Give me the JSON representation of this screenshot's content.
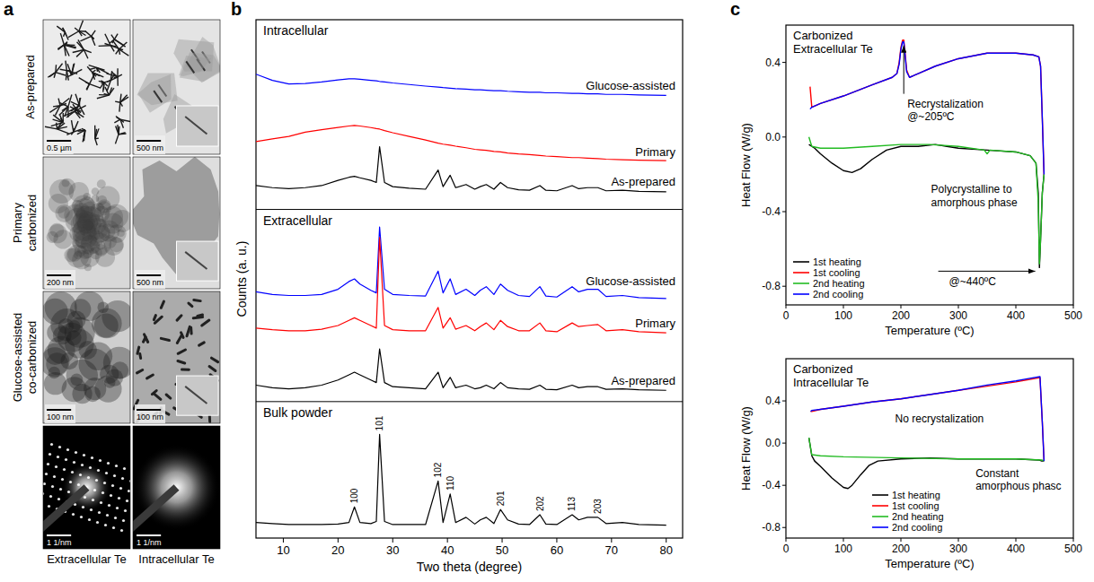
{
  "panel_a": {
    "panel_label": "a",
    "row_labels": [
      [
        "As-prepared"
      ],
      [
        "Primary",
        "carbonized"
      ],
      [
        "Glucose-assisted",
        "co-carbonized"
      ]
    ],
    "column_labels": [
      "Extracellular Te",
      "Intracellular Te"
    ],
    "scale_bars": [
      [
        "0.5 µm",
        "500 nm"
      ],
      [
        "200 nm",
        "500 nm"
      ],
      [
        "100 nm",
        "100 nm"
      ],
      [
        "1 1/nm",
        "1 1/nm"
      ]
    ]
  },
  "chart_data": [
    {
      "type": "line",
      "panel_label": "b",
      "x_label": "Two theta (degree)",
      "y_label": "Counts (a. u.)",
      "xlim": [
        5,
        83
      ],
      "xticks": [
        10,
        20,
        30,
        40,
        50,
        60,
        70,
        80
      ],
      "ylim": [
        0,
        100
      ],
      "tick_labels": "x",
      "x": [
        5,
        8,
        11,
        14,
        17,
        20,
        22,
        23,
        24,
        26,
        27,
        27.6,
        28.5,
        30,
        33,
        36,
        38.3,
        39.2,
        40.5,
        41.5,
        43.4,
        45,
        46,
        47.1,
        48.5,
        49.7,
        51,
        53,
        55,
        56.9,
        58,
        60,
        62.8,
        64,
        65.6,
        67.5,
        69,
        72,
        75,
        80
      ],
      "sections": [
        {
          "title": "Intracellular",
          "series": [
            {
              "name": "Glucose-assisted",
              "color": "#0000ff",
              "values": [
                89.5,
                88.3,
                87.6,
                87.7,
                88,
                88.4,
                88.6,
                88.6,
                88.5,
                88.3,
                88.2,
                88.1,
                88,
                87.8,
                87.5,
                87.2,
                87,
                86.9,
                86.8,
                86.7,
                86.6,
                86.5,
                86.5,
                86.4,
                86.3,
                86.3,
                86.2,
                86.1,
                86,
                86,
                85.9,
                85.9,
                85.8,
                85.8,
                85.7,
                85.7,
                85.6,
                85.6,
                85.5,
                85.4
              ]
            },
            {
              "name": "Primary",
              "color": "#ff0000",
              "values": [
                76.5,
                77,
                77.5,
                78.3,
                78.8,
                79.2,
                79.5,
                79.6,
                79.5,
                79.2,
                79,
                78.9,
                78.6,
                78.2,
                77.5,
                76.8,
                76.2,
                76,
                75.8,
                75.6,
                75.3,
                75,
                74.9,
                74.8,
                74.6,
                74.5,
                74.3,
                74.1,
                74,
                73.8,
                73.7,
                73.6,
                73.4,
                73.4,
                73.3,
                73.2,
                73.1,
                73,
                72.9,
                72.8
              ]
            },
            {
              "name": "As-prepared",
              "color": "#000000",
              "values": [
                68,
                67.6,
                67.4,
                67.6,
                68,
                69,
                69.6,
                69.8,
                69.5,
                69,
                68.6,
                75.5,
                68.6,
                67.8,
                67.5,
                67.3,
                71,
                67.8,
                70,
                67.6,
                68.2,
                67.3,
                67.8,
                68.2,
                67.3,
                68.6,
                67.6,
                67.2,
                67.1,
                68,
                67.1,
                67,
                68,
                67.4,
                67.6,
                67.6,
                67,
                67.1,
                66.9,
                66.8
              ]
            }
          ]
        },
        {
          "title": "Extracellular",
          "series": [
            {
              "name": "Glucose-assisted",
              "color": "#0000ff",
              "values": [
                47.5,
                47,
                46.8,
                46.8,
                47,
                48,
                49.5,
                50,
                49,
                47.8,
                47.3,
                60,
                48,
                47,
                46.8,
                46.7,
                51.5,
                47.3,
                50,
                47,
                48,
                46.8,
                47.8,
                48.5,
                47,
                49,
                47.8,
                46.8,
                46.6,
                48.5,
                46.7,
                46.5,
                48.5,
                47.5,
                48,
                48,
                46.6,
                46.8,
                46.4,
                46.2
              ]
            },
            {
              "name": "Primary",
              "color": "#ff0000",
              "values": [
                40.5,
                40.2,
                40,
                40,
                40.3,
                41,
                42,
                42.5,
                42,
                41,
                40.5,
                58,
                41,
                40.2,
                40,
                40,
                44.5,
                40.5,
                42.5,
                40.3,
                41,
                40,
                40.8,
                41.5,
                40.2,
                42,
                40.8,
                40,
                40,
                41.5,
                40,
                39.8,
                41.5,
                40.8,
                41,
                41.2,
                40,
                40.2,
                39.8,
                39.6
              ]
            },
            {
              "name": "As-prepared",
              "color": "#000000",
              "values": [
                29.5,
                29,
                28.8,
                29,
                29.5,
                30.5,
                31.5,
                32,
                31.5,
                30.5,
                30,
                36.5,
                30,
                29.2,
                29,
                28.8,
                32,
                29,
                31,
                29,
                29.5,
                28.8,
                29,
                29.5,
                28.8,
                30,
                29,
                28.8,
                28.7,
                29.5,
                28.7,
                28.6,
                29.5,
                29,
                29.2,
                29.2,
                28.7,
                28.8,
                28.6,
                28.5
              ]
            }
          ]
        },
        {
          "title": "Bulk powder",
          "series": [
            {
              "color": "#000000",
              "values": [
                3,
                2.8,
                2.6,
                2.6,
                2.6,
                2.7,
                3,
                6,
                3,
                2.8,
                3.2,
                20,
                3.2,
                2.6,
                2.6,
                2.6,
                11,
                3,
                8.5,
                3,
                4,
                2.7,
                3.5,
                4,
                2.8,
                5.5,
                3.5,
                2.7,
                2.6,
                4.5,
                2.7,
                2.6,
                4.5,
                3.5,
                4,
                4,
                2.8,
                3,
                2.6,
                2.5
              ]
            }
          ],
          "annotations": [
            {
              "text": "100",
              "x": 23
            },
            {
              "text": "101",
              "x": 27.6
            },
            {
              "text": "102",
              "x": 38.3
            },
            {
              "text": "110",
              "x": 40.5
            },
            {
              "text": "201",
              "x": 49.7
            },
            {
              "text": "202",
              "x": 56.9
            },
            {
              "text": "113",
              "x": 62.8
            },
            {
              "text": "203",
              "x": 67.5
            }
          ]
        }
      ]
    },
    {
      "type": "line",
      "panel_label": "c",
      "title": [
        "Carbonized",
        "Extracellular Te"
      ],
      "x_label": "Temperature (ºC)",
      "y_label": "Heat Flow (W/g)",
      "xlim": [
        0,
        500
      ],
      "xticks": [
        0,
        100,
        200,
        300,
        400,
        500
      ],
      "ylim": [
        -0.9,
        0.6
      ],
      "yticks": [
        -0.8,
        -0.4,
        {
          "value": 0,
          "label": "0.0"
        },
        0.4
      ],
      "legend": "lower left",
      "series": [
        {
          "name": "1st heating",
          "color": "#000000",
          "x": [
            40,
            50,
            60,
            80,
            100,
            115,
            130,
            150,
            175,
            200,
            230,
            260,
            280,
            300,
            350,
            400,
            425,
            435,
            439,
            441,
            443,
            446,
            449
          ],
          "values": [
            -0.04,
            -0.06,
            -0.09,
            -0.14,
            -0.18,
            -0.19,
            -0.17,
            -0.12,
            -0.07,
            -0.05,
            -0.05,
            -0.04,
            -0.05,
            -0.06,
            -0.07,
            -0.08,
            -0.1,
            -0.14,
            -0.3,
            -0.7,
            -0.55,
            -0.3,
            -0.2
          ]
        },
        {
          "name": "1st cooling",
          "color": "#ff0000",
          "x": [
            449,
            446,
            443,
            440,
            430,
            400,
            350,
            300,
            260,
            230,
            215,
            210,
            207,
            205,
            203,
            200,
            197,
            193,
            185,
            150,
            100,
            60,
            45,
            42
          ],
          "values": [
            -0.2,
            0.1,
            0.38,
            0.43,
            0.44,
            0.45,
            0.45,
            0.42,
            0.38,
            0.34,
            0.32,
            0.36,
            0.46,
            0.52,
            0.52,
            0.48,
            0.4,
            0.34,
            0.32,
            0.28,
            0.22,
            0.18,
            0.16,
            0.27
          ]
        },
        {
          "name": "2nd heating",
          "color": "#22bb22",
          "x": [
            40,
            45,
            60,
            100,
            150,
            200,
            250,
            300,
            345,
            350,
            355,
            400,
            425,
            435,
            439,
            441,
            443,
            446,
            449
          ],
          "values": [
            0,
            -0.05,
            -0.06,
            -0.06,
            -0.05,
            -0.04,
            -0.04,
            -0.05,
            -0.07,
            -0.09,
            -0.07,
            -0.08,
            -0.1,
            -0.14,
            -0.35,
            -0.68,
            -0.55,
            -0.3,
            -0.2
          ]
        },
        {
          "name": "2nd cooling",
          "color": "#0000ff",
          "x": [
            449,
            446,
            443,
            440,
            430,
            400,
            350,
            300,
            260,
            230,
            215,
            210,
            207,
            205,
            203,
            200,
            197,
            193,
            185,
            150,
            100,
            60,
            45,
            42
          ],
          "values": [
            -0.2,
            0.1,
            0.38,
            0.43,
            0.44,
            0.45,
            0.45,
            0.42,
            0.38,
            0.34,
            0.32,
            0.35,
            0.45,
            0.51,
            0.51,
            0.47,
            0.39,
            0.34,
            0.32,
            0.28,
            0.22,
            0.18,
            0.16,
            0.15
          ]
        }
      ],
      "annotations": [
        {
          "lines": [
            "Recrystalization",
            "@~205ºC"
          ],
          "x": 205,
          "y": 0.52
        },
        {
          "lines": [
            "Polycrystalline to",
            "amorphous phase",
            "@~440ºC"
          ],
          "x": 440,
          "y": -0.7
        }
      ]
    },
    {
      "type": "line",
      "title": [
        "Carbonized",
        "Intracellular Te"
      ],
      "x_label": "Temperature (ºC)",
      "y_label": "Heat Flow (W/g)",
      "xlim": [
        0,
        500
      ],
      "xticks": [
        0,
        100,
        200,
        300,
        400,
        500
      ],
      "ylim": [
        -0.9,
        0.8
      ],
      "yticks": [
        -0.8,
        -0.4,
        {
          "value": 0,
          "label": "0.0"
        },
        0.4
      ],
      "legend": "lower center",
      "series": [
        {
          "name": "1st heating",
          "color": "#000000",
          "x": [
            40,
            45,
            50,
            60,
            80,
            100,
            108,
            115,
            130,
            145,
            160,
            200,
            250,
            300,
            350,
            400,
            440,
            445,
            449
          ],
          "values": [
            0.05,
            -0.12,
            -0.17,
            -0.22,
            -0.33,
            -0.42,
            -0.43,
            -0.4,
            -0.3,
            -0.21,
            -0.17,
            -0.15,
            -0.14,
            -0.15,
            -0.15,
            -0.15,
            -0.16,
            -0.17,
            -0.17
          ]
        },
        {
          "name": "1st cooling",
          "color": "#ff0000",
          "x": [
            449,
            446,
            442,
            420,
            400,
            350,
            300,
            250,
            200,
            150,
            100,
            60,
            45,
            43
          ],
          "values": [
            -0.17,
            0.2,
            0.62,
            0.6,
            0.58,
            0.54,
            0.5,
            0.46,
            0.42,
            0.39,
            0.35,
            0.32,
            0.3,
            0.3
          ]
        },
        {
          "name": "2nd heating",
          "color": "#22bb22",
          "x": [
            40,
            45,
            60,
            100,
            200,
            300,
            400,
            445,
            449
          ],
          "values": [
            0.05,
            -0.11,
            -0.12,
            -0.13,
            -0.14,
            -0.15,
            -0.15,
            -0.16,
            -0.17
          ]
        },
        {
          "name": "2nd cooling",
          "color": "#0000ff",
          "x": [
            449,
            446,
            442,
            420,
            400,
            350,
            300,
            250,
            200,
            150,
            100,
            60,
            45,
            43
          ],
          "values": [
            -0.17,
            0.2,
            0.63,
            0.61,
            0.59,
            0.55,
            0.5,
            0.46,
            0.42,
            0.39,
            0.35,
            0.32,
            0.31,
            0.3
          ]
        }
      ],
      "annotations": [
        {
          "lines": [
            "No recrystalization"
          ],
          "x": 190,
          "y": 0.2
        },
        {
          "lines": [
            "Constant",
            "amorphous phasc"
          ],
          "x": 330,
          "y": -0.32
        }
      ]
    }
  ]
}
